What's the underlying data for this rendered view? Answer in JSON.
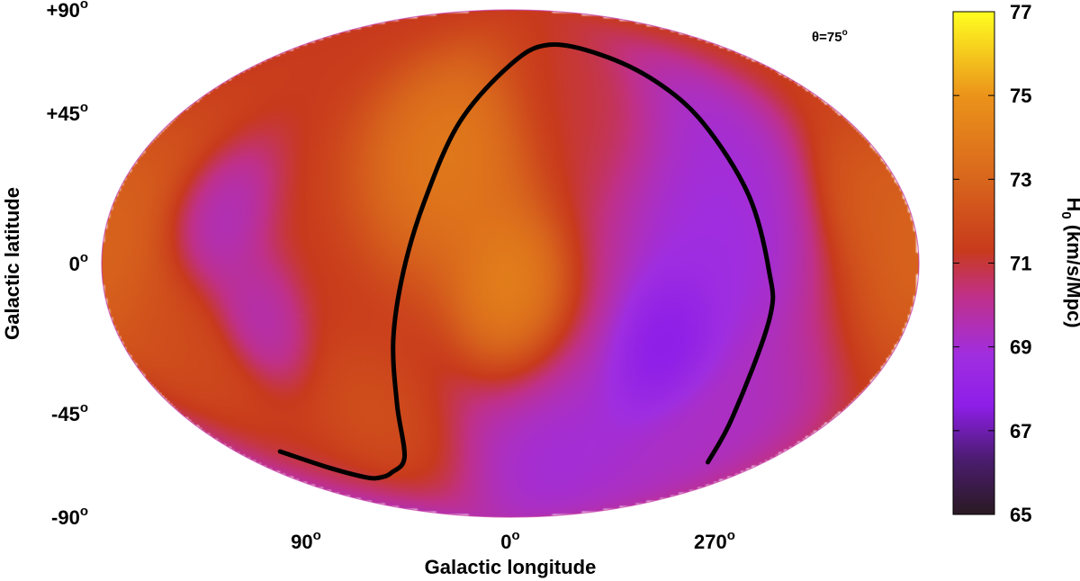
{
  "chart_data": {
    "type": "heatmap",
    "projection": "Mollweide (all-sky, Galactic coordinates)",
    "title": "",
    "xlabel": "Galactic longitude",
    "ylabel": "Galactic latitude",
    "annotation": {
      "prefix": "θ=",
      "value": "75",
      "degree": "o"
    },
    "xticks": [
      {
        "value": "90",
        "deg": "o",
        "lon": 90
      },
      {
        "value": "0",
        "deg": "o",
        "lon": 0
      },
      {
        "value": "270",
        "deg": "o",
        "lon": 270
      }
    ],
    "yticks": [
      {
        "value": "+90",
        "deg": "o",
        "lat": 90
      },
      {
        "value": "+45",
        "deg": "o",
        "lat": 45
      },
      {
        "value": "0",
        "deg": "o",
        "lat": 0
      },
      {
        "value": "-45",
        "deg": "o",
        "lat": -45
      },
      {
        "value": "-90",
        "deg": "o",
        "lat": -90
      }
    ],
    "colorbar": {
      "label_main": "H",
      "label_sub": "0",
      "label_rest": " (km/s/Mpc)",
      "min": 65,
      "max": 77,
      "ticks": [
        "77",
        "75",
        "73",
        "71",
        "69",
        "67",
        "65"
      ],
      "colors": [
        "#2a1a22",
        "#4a1c6e",
        "#8e1ee8",
        "#a02ee0",
        "#c0308a",
        "#c83a1c",
        "#d8661c",
        "#eb931a",
        "#ffff20"
      ],
      "color_stops": [
        65,
        66.3,
        67.6,
        68.8,
        70.2,
        71.3,
        73.0,
        75.0,
        77.0
      ]
    },
    "background_value": 71.3,
    "sky_features": [
      {
        "lon": 30,
        "lat": 32,
        "value": 74.6,
        "sigma": 20
      },
      {
        "lon": 0,
        "lat": -8,
        "value": 75.0,
        "sigma": 14
      },
      {
        "lon": 322,
        "lat": 48,
        "value": 71.0,
        "sigma": 15
      },
      {
        "lon": 180,
        "lat": 4,
        "value": 73.4,
        "sigma": 20
      },
      {
        "lon": 130,
        "lat": 12,
        "value": 68.8,
        "sigma": 12
      },
      {
        "lon": 112,
        "lat": -16,
        "value": 69.2,
        "sigma": 10
      },
      {
        "lon": 152,
        "lat": -22,
        "value": 72.0,
        "sigma": 12
      },
      {
        "lon": 70,
        "lat": -50,
        "value": 72.4,
        "sigma": 14
      },
      {
        "lon": 270,
        "lat": 2,
        "value": 67.9,
        "sigma": 26
      },
      {
        "lon": 288,
        "lat": -24,
        "value": 66.2,
        "sigma": 12
      },
      {
        "lon": 325,
        "lat": -62,
        "value": 68.2,
        "sigma": 22
      },
      {
        "lon": 250,
        "lat": 38,
        "value": 68.6,
        "sigma": 16
      },
      {
        "lon": 232,
        "lat": -50,
        "value": 68.8,
        "sigma": 18
      },
      {
        "lon": 202,
        "lat": 16,
        "value": 72.7,
        "sigma": 10
      }
    ],
    "curve": [
      [
        151,
        -58
      ],
      [
        135,
        -64
      ],
      [
        118,
        -68
      ],
      [
        106,
        -68
      ],
      [
        92,
        -66
      ],
      [
        72,
        -60
      ],
      [
        60,
        -42
      ],
      [
        54,
        -22
      ],
      [
        47,
        -2
      ],
      [
        39,
        18
      ],
      [
        27,
        42
      ],
      [
        0,
        62
      ],
      [
        -33,
        70
      ],
      [
        -70,
        66
      ],
      [
        -92,
        56
      ],
      [
        -102,
        42
      ],
      [
        -109,
        20
      ],
      [
        -114,
        -2
      ],
      [
        -117,
        -16
      ],
      [
        -123,
        -46
      ],
      [
        -140,
        -62
      ]
    ]
  }
}
